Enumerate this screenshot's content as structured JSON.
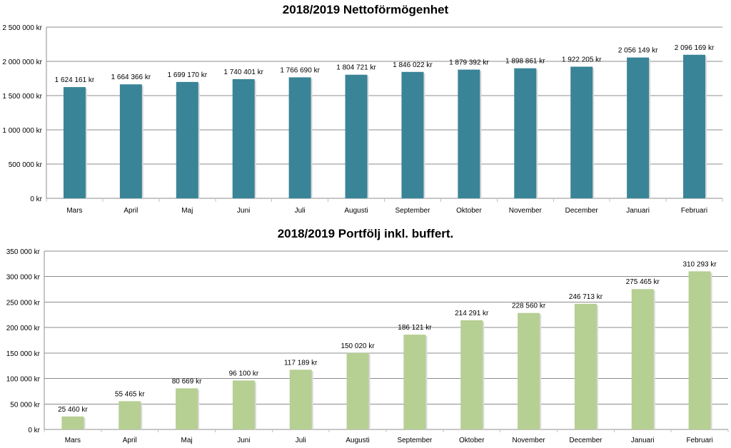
{
  "chart_data": [
    {
      "type": "bar",
      "title": "2018/2019 Nettoförmögenhet",
      "categories": [
        "Mars",
        "April",
        "Maj",
        "Juni",
        "Juli",
        "Augusti",
        "September",
        "Oktober",
        "November",
        "December",
        "Januari",
        "Februari"
      ],
      "values": [
        1624161,
        1664366,
        1699170,
        1740401,
        1766690,
        1804721,
        1846022,
        1879392,
        1898861,
        1922205,
        2056149,
        2096169
      ],
      "data_labels": [
        "1 624 161 kr",
        "1 664 366 kr",
        "1 699 170 kr",
        "1 740 401 kr",
        "1 766 690 kr",
        "1 804 721 kr",
        "1 846 022 kr",
        "1 879 392 kr",
        "1 898 861 kr",
        "1 922 205 kr",
        "2 056 149 kr",
        "2 096 169 kr"
      ],
      "yticks": [
        "0 kr",
        "500 000 kr",
        "1 000 000 kr",
        "1 500 000 kr",
        "2 000 000 kr",
        "2 500 000 kr"
      ],
      "ylim": [
        0,
        2500000
      ],
      "grid": true,
      "legend": "none",
      "color": "#3a8497"
    },
    {
      "type": "bar",
      "title": "2018/2019 Portfölj inkl. buffert.",
      "categories": [
        "Mars",
        "April",
        "Maj",
        "Juni",
        "Juli",
        "Augusti",
        "September",
        "Oktober",
        "November",
        "December",
        "Januari",
        "Februari"
      ],
      "values": [
        25460,
        55465,
        80669,
        96100,
        117189,
        150020,
        186121,
        214291,
        228560,
        246713,
        275465,
        310293
      ],
      "data_labels": [
        "25 460 kr",
        "55 465 kr",
        "80 669 kr",
        "96 100 kr",
        "117 189 kr",
        "150 020 kr",
        "186 121 kr",
        "214 291 kr",
        "228 560 kr",
        "246 713 kr",
        "275 465 kr",
        "310 293 kr"
      ],
      "yticks": [
        "0 kr",
        "50 000 kr",
        "100 000 kr",
        "150 000 kr",
        "200 000 kr",
        "250 000 kr",
        "300 000 kr",
        "350 000 kr"
      ],
      "ylim": [
        0,
        350000
      ],
      "grid": true,
      "legend": "none",
      "color": "#b6cf92"
    }
  ]
}
